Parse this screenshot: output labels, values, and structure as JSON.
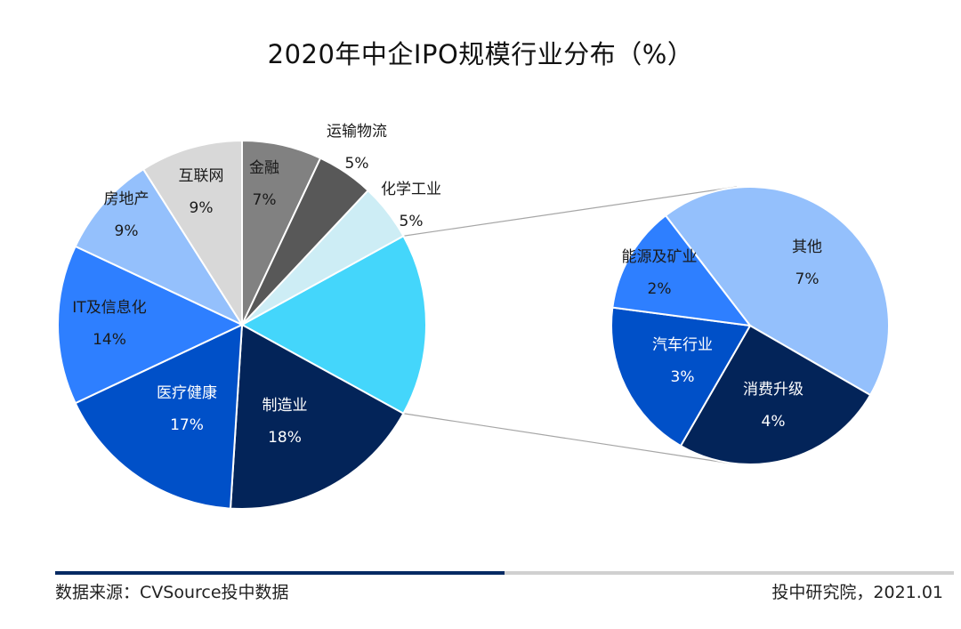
{
  "chart_data": {
    "type": "pie",
    "subtype": "pie-of-pie",
    "title": "2020年中企IPO规模行业分布（%）",
    "unit": "%",
    "main_pie": {
      "slices": [
        {
          "label": "",
          "value": 16,
          "pct_label": "",
          "color": "#44d6fb",
          "text_color": "#1a1a1a",
          "is_breakout": true
        },
        {
          "label": "制造业",
          "value": 18,
          "pct_label": "18%",
          "color": "#032459",
          "text_color": "#ffffff"
        },
        {
          "label": "医疗健康",
          "value": 17,
          "pct_label": "17%",
          "color": "#0050c8",
          "text_color": "#ffffff"
        },
        {
          "label": "IT及信息化",
          "value": 14,
          "pct_label": "14%",
          "color": "#2e7fff",
          "text_color": "#1a1a1a"
        },
        {
          "label": "房地产",
          "value": 9,
          "pct_label": "9%",
          "color": "#94c0fc",
          "text_color": "#1a1a1a"
        },
        {
          "label": "互联网",
          "value": 9,
          "pct_label": "9%",
          "color": "#d8d8d8",
          "text_color": "#1a1a1a"
        },
        {
          "label": "金融",
          "value": 7,
          "pct_label": "7%",
          "color": "#818181",
          "text_color": "#1a1a1a"
        },
        {
          "label": "运输物流",
          "value": 5,
          "pct_label": "5%",
          "color": "#585858",
          "text_color": "#1a1a1a",
          "label_outside": true
        },
        {
          "label": "化学工业",
          "value": 5,
          "pct_label": "5%",
          "color": "#cdedf5",
          "text_color": "#1a1a1a",
          "label_outside": true
        }
      ]
    },
    "secondary_pie": {
      "slices": [
        {
          "label": "其他",
          "value": 7,
          "pct_label": "7%",
          "color": "#94c0fc",
          "text_color": "#1a1a1a"
        },
        {
          "label": "消费升级",
          "value": 4,
          "pct_label": "4%",
          "color": "#032459",
          "text_color": "#ffffff"
        },
        {
          "label": "汽车行业",
          "value": 3,
          "pct_label": "3%",
          "color": "#0050c8",
          "text_color": "#ffffff"
        },
        {
          "label": "能源及矿业",
          "value": 2,
          "pct_label": "2%",
          "color": "#2e7fff",
          "text_color": "#1a1a1a"
        }
      ]
    }
  },
  "footer": {
    "source": "数据来源：CVSource投中数据",
    "credit": "投中研究院，2021.01"
  }
}
